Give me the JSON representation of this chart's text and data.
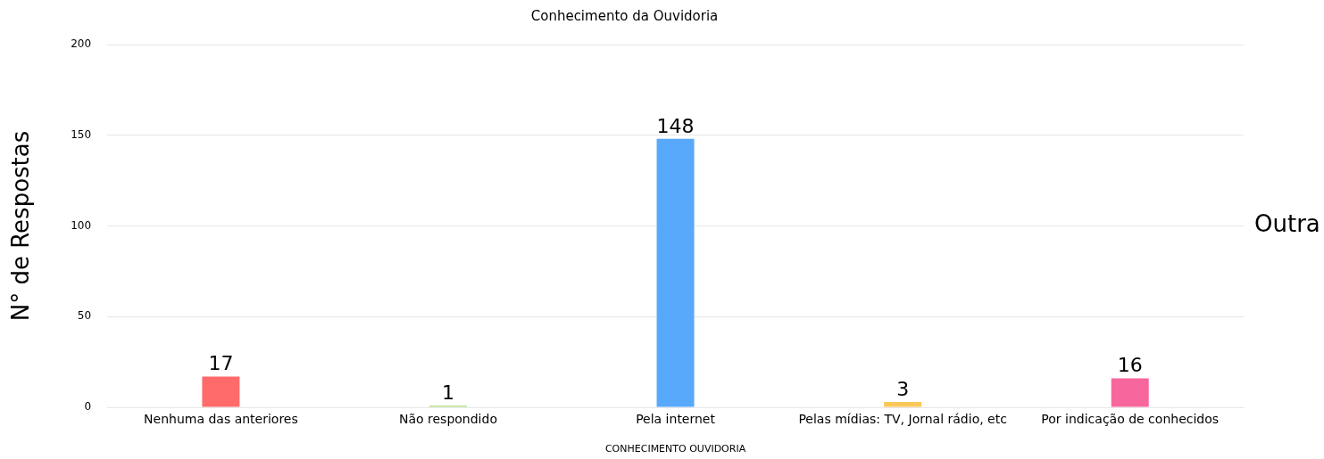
{
  "chart_data": {
    "type": "bar",
    "title": "Conhecimento da Ouvidoria",
    "xlabel": "CONHECIMENTO OUVIDORIA",
    "ylabel": "N° de Respostas",
    "categories": [
      "Nenhuma das anteriores",
      "Não respondido",
      "Pela internet",
      "Pelas mídias: TV, Jornal rádio, etc",
      "Por indicação de conhecidos"
    ],
    "values": [
      17,
      1,
      148,
      3,
      16
    ],
    "colors": [
      "#ff6b6b",
      "#b5e08c",
      "#58a9fc",
      "#fcc858",
      "#f7679e"
    ],
    "ylim": [
      0,
      200
    ],
    "yticks": [
      0,
      50,
      100,
      150,
      200
    ],
    "grid": "y",
    "data_labels": true,
    "annotations": [
      "Outra"
    ]
  }
}
